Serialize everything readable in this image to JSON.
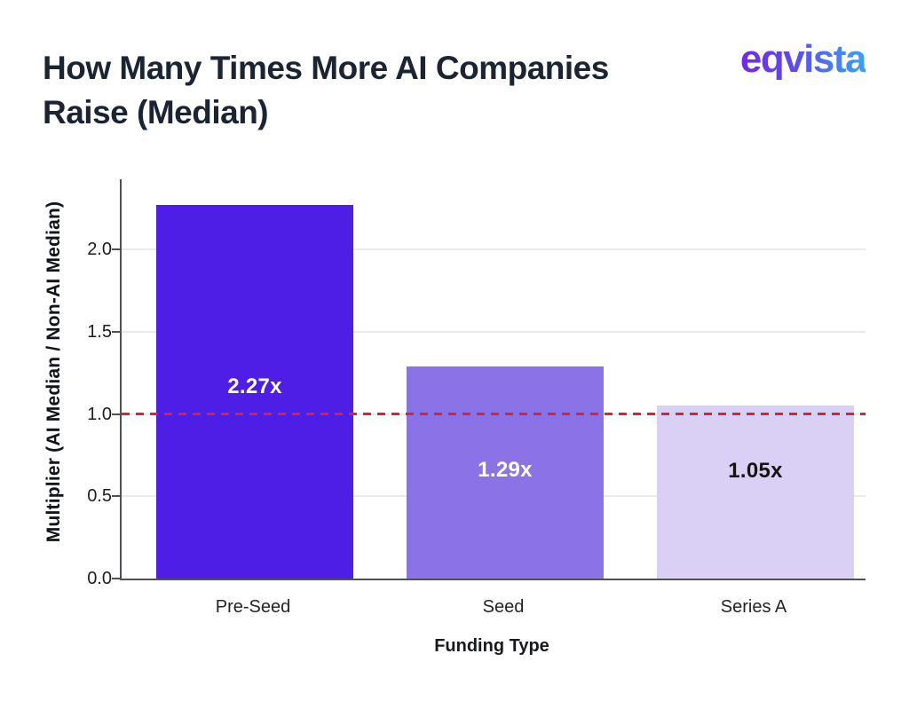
{
  "header": {
    "title_line1": "How Many Times More AI Companies",
    "title_line2": "Raise (Median)",
    "logo_text": "eqvista"
  },
  "chart_data": {
    "type": "bar",
    "title": "How Many Times More AI Companies Raise (Median)",
    "xlabel": "Funding Type",
    "ylabel": "Multiplier (AI Median / Non-AI Median)",
    "categories": [
      "Pre-Seed",
      "Seed",
      "Series A"
    ],
    "values": [
      2.27,
      1.29,
      1.05
    ],
    "bar_labels": [
      "2.27x",
      "1.29x",
      "1.05x"
    ],
    "bar_colors": [
      "#4e1de6",
      "#8b72e6",
      "#dad0f6"
    ],
    "bar_label_colors": [
      "#ffffff",
      "#ffffff",
      "#141414"
    ],
    "yticks": [
      0,
      0.5,
      1,
      1.5,
      2
    ],
    "ytick_labels": [
      "0.0",
      "0.5",
      "1.0",
      "1.5",
      "2.0"
    ],
    "ylim": [
      0,
      2.43
    ],
    "grid": true,
    "legend_position": "none",
    "reference_line": {
      "value": 1.0,
      "color": "#d42727",
      "style": "dashed"
    }
  },
  "colors": {
    "background": "#ffffff",
    "title_text": "#1b2433",
    "logo_gradient_start": "#7326ec",
    "logo_gradient_end": "#38a2fb",
    "axis": "#4f5154",
    "gridline": "#eaeaea",
    "tick_text": "#1d1d1f",
    "reference_line": "#d42727"
  }
}
